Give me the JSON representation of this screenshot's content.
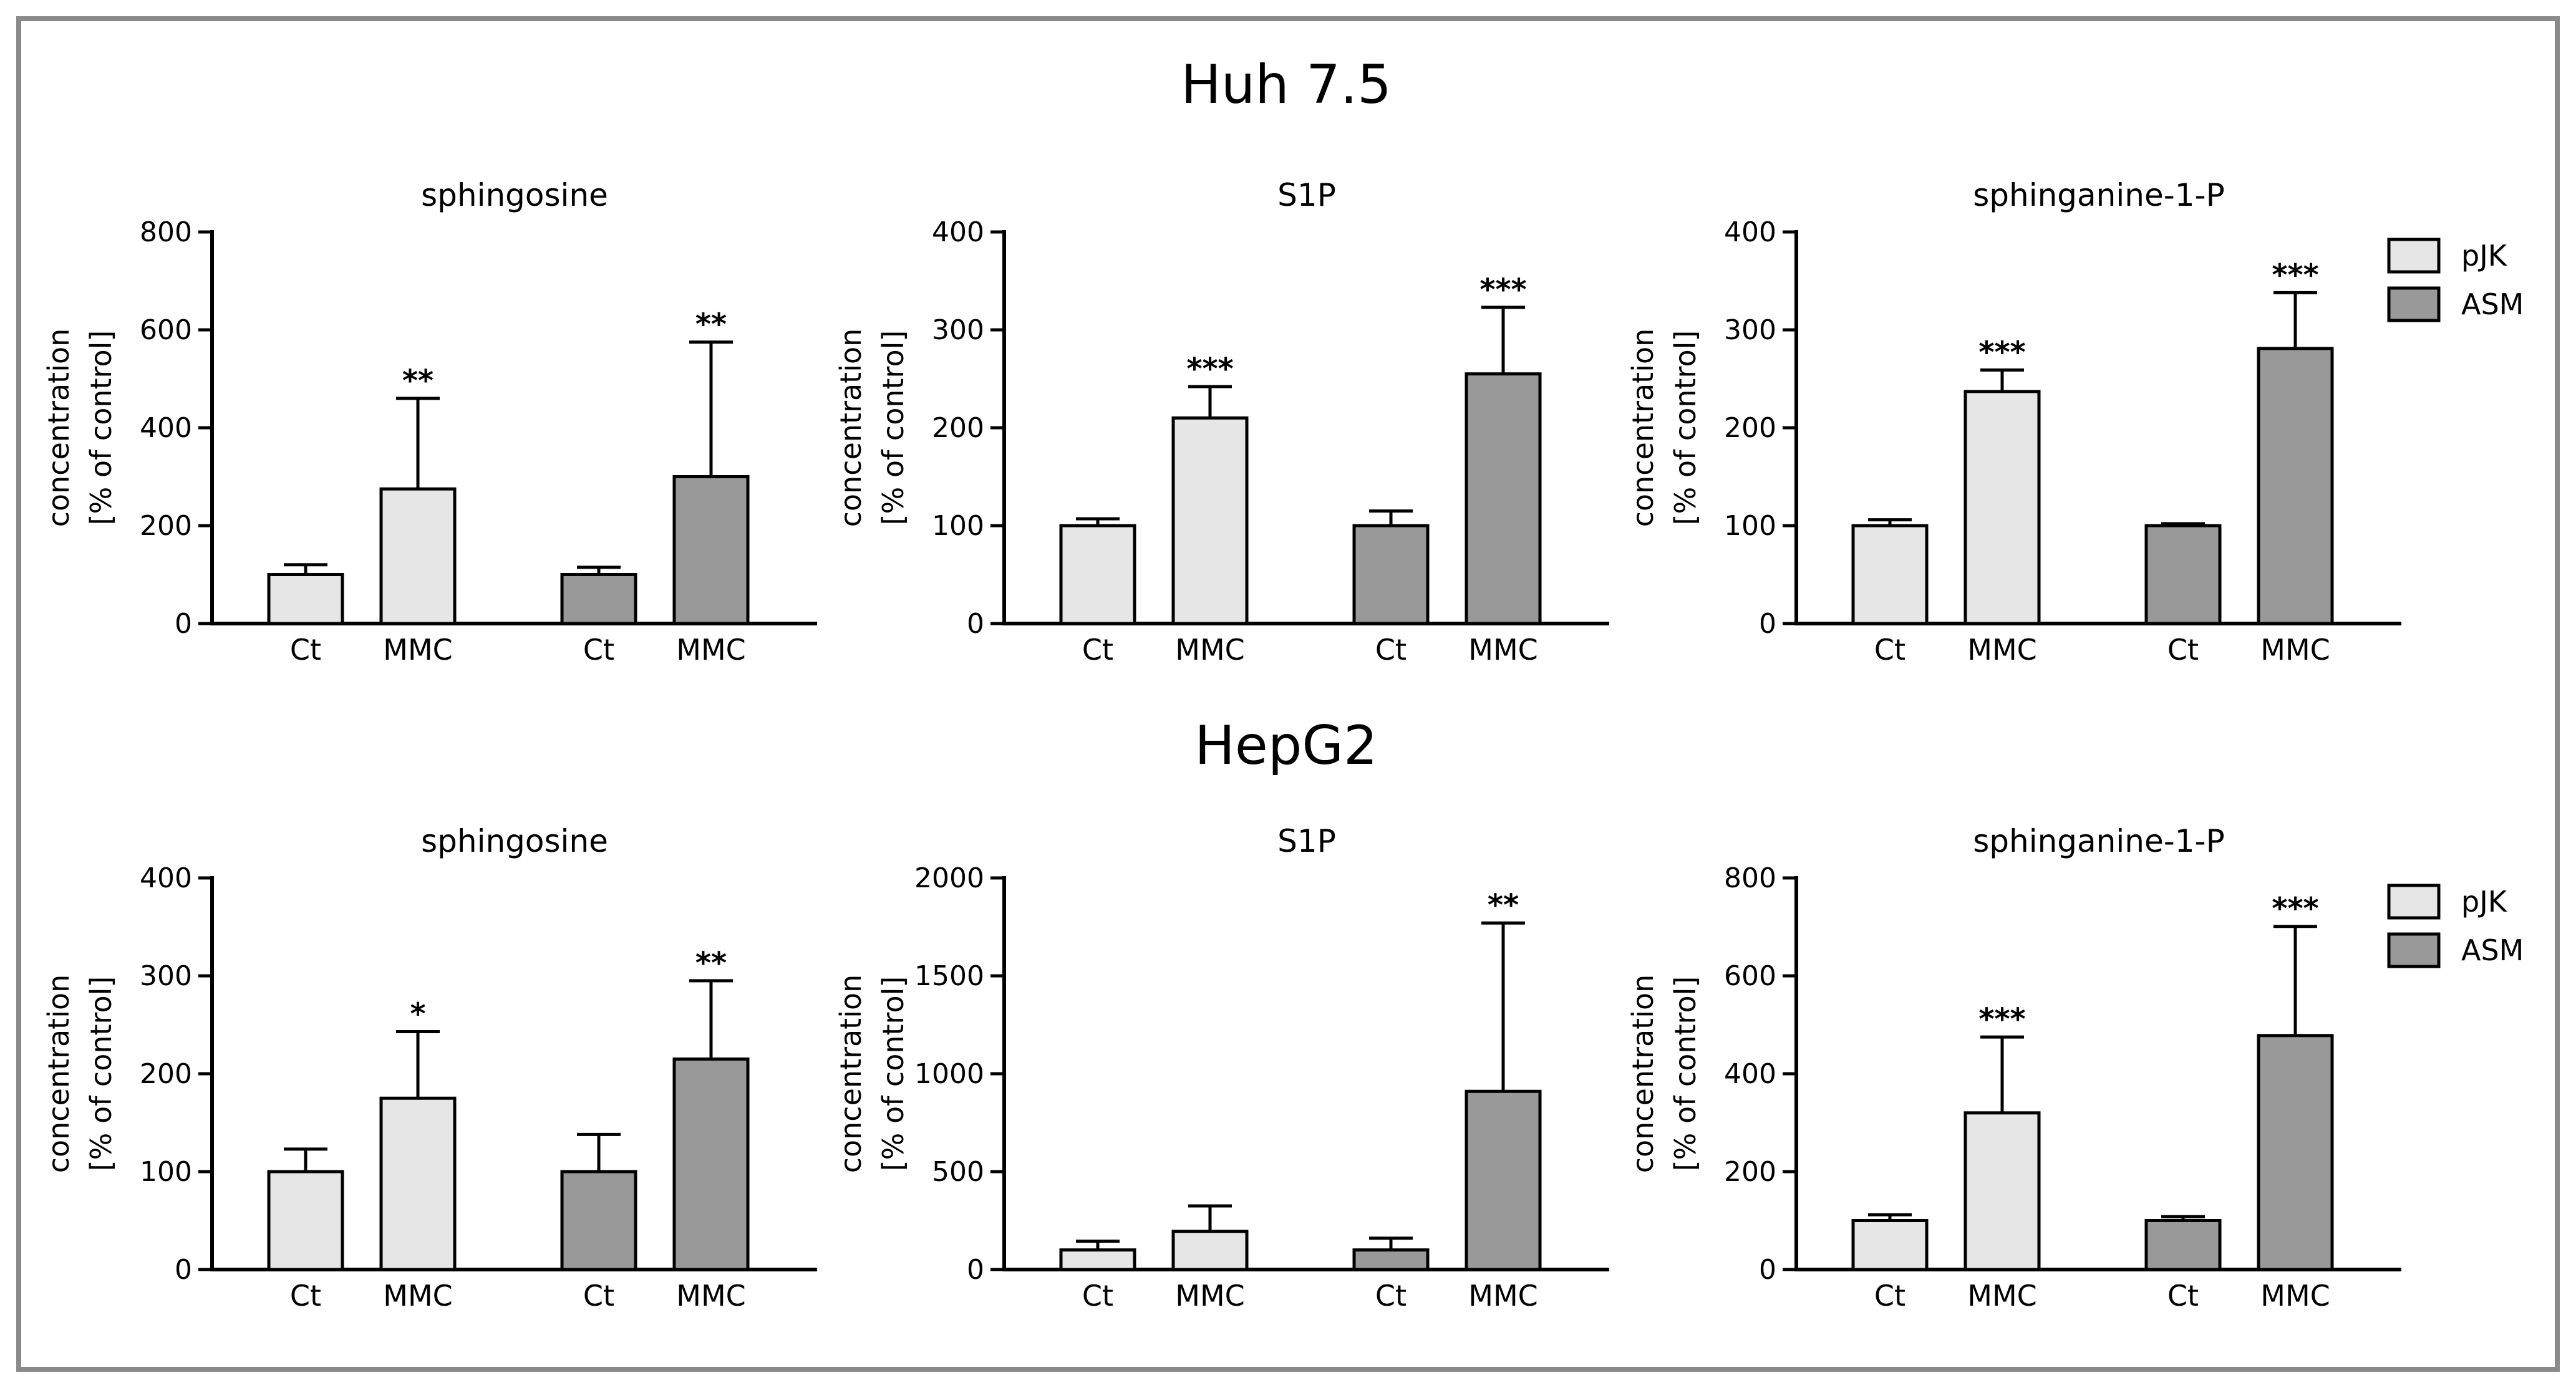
{
  "section_titles": [
    "Huh 7.5",
    "HepG2"
  ],
  "colors": {
    "pJK": "#e6e6e6",
    "ASM": "#999999",
    "frame": "#8a8a8a"
  },
  "legend": [
    {
      "label": "pJK",
      "color_key": "pJK"
    },
    {
      "label": "ASM",
      "color_key": "ASM"
    }
  ],
  "chart_data": [
    {
      "type": "bar",
      "section": "Huh 7.5",
      "title": "sphingosine",
      "ylabel": [
        "concentration",
        "[% of control]"
      ],
      "ylim": [
        0,
        800
      ],
      "yticks": [
        0,
        200,
        400,
        600,
        800
      ],
      "categories": [
        "Ct",
        "MMC",
        "Ct",
        "MMC"
      ],
      "groups": [
        "pJK",
        "pJK",
        "ASM",
        "ASM"
      ],
      "values": [
        100,
        275,
        100,
        300
      ],
      "errors": [
        20,
        185,
        15,
        275
      ],
      "significance": [
        "",
        "**",
        "",
        "**"
      ],
      "legend": false
    },
    {
      "type": "bar",
      "section": "Huh 7.5",
      "title": "S1P",
      "ylabel": [
        "concentration",
        "[% of control]"
      ],
      "ylim": [
        0,
        400
      ],
      "yticks": [
        0,
        100,
        200,
        300,
        400
      ],
      "categories": [
        "Ct",
        "MMC",
        "Ct",
        "MMC"
      ],
      "groups": [
        "pJK",
        "pJK",
        "ASM",
        "ASM"
      ],
      "values": [
        100,
        210,
        100,
        255
      ],
      "errors": [
        7,
        32,
        15,
        68
      ],
      "significance": [
        "",
        "***",
        "",
        "***"
      ],
      "legend": false
    },
    {
      "type": "bar",
      "section": "Huh 7.5",
      "title": "sphinganine-1-P",
      "ylabel": [
        "concentration",
        "[% of control]"
      ],
      "ylim": [
        0,
        400
      ],
      "yticks": [
        0,
        100,
        200,
        300,
        400
      ],
      "categories": [
        "Ct",
        "MMC",
        "Ct",
        "MMC"
      ],
      "groups": [
        "pJK",
        "pJK",
        "ASM",
        "ASM"
      ],
      "values": [
        100,
        237,
        100,
        281
      ],
      "errors": [
        6,
        22,
        2,
        57
      ],
      "significance": [
        "",
        "***",
        "",
        "***"
      ],
      "legend": true
    },
    {
      "type": "bar",
      "section": "HepG2",
      "title": "sphingosine",
      "ylabel": [
        "concentration",
        "[% of control]"
      ],
      "ylim": [
        0,
        400
      ],
      "yticks": [
        0,
        100,
        200,
        300,
        400
      ],
      "categories": [
        "Ct",
        "MMC",
        "Ct",
        "MMC"
      ],
      "groups": [
        "pJK",
        "pJK",
        "ASM",
        "ASM"
      ],
      "values": [
        100,
        175,
        100,
        215
      ],
      "errors": [
        23,
        68,
        38,
        80
      ],
      "significance": [
        "",
        "*",
        "",
        "**"
      ],
      "legend": false
    },
    {
      "type": "bar",
      "section": "HepG2",
      "title": "S1P",
      "ylabel": [
        "concentration",
        "[% of control]"
      ],
      "ylim": [
        0,
        2000
      ],
      "yticks": [
        0,
        500,
        1000,
        1500,
        2000
      ],
      "categories": [
        "Ct",
        "MMC",
        "Ct",
        "MMC"
      ],
      "groups": [
        "pJK",
        "pJK",
        "ASM",
        "ASM"
      ],
      "values": [
        100,
        195,
        100,
        910
      ],
      "errors": [
        45,
        130,
        60,
        860
      ],
      "significance": [
        "",
        "",
        "",
        "**"
      ],
      "legend": false
    },
    {
      "type": "bar",
      "section": "HepG2",
      "title": "sphinganine-1-P",
      "ylabel": [
        "concentration",
        "[% of control]"
      ],
      "ylim": [
        0,
        800
      ],
      "yticks": [
        0,
        200,
        400,
        600,
        800
      ],
      "categories": [
        "Ct",
        "MMC",
        "Ct",
        "MMC"
      ],
      "groups": [
        "pJK",
        "pJK",
        "ASM",
        "ASM"
      ],
      "values": [
        100,
        320,
        100,
        478
      ],
      "errors": [
        12,
        155,
        8,
        223
      ],
      "significance": [
        "",
        "***",
        "",
        "***"
      ],
      "legend": true
    }
  ]
}
